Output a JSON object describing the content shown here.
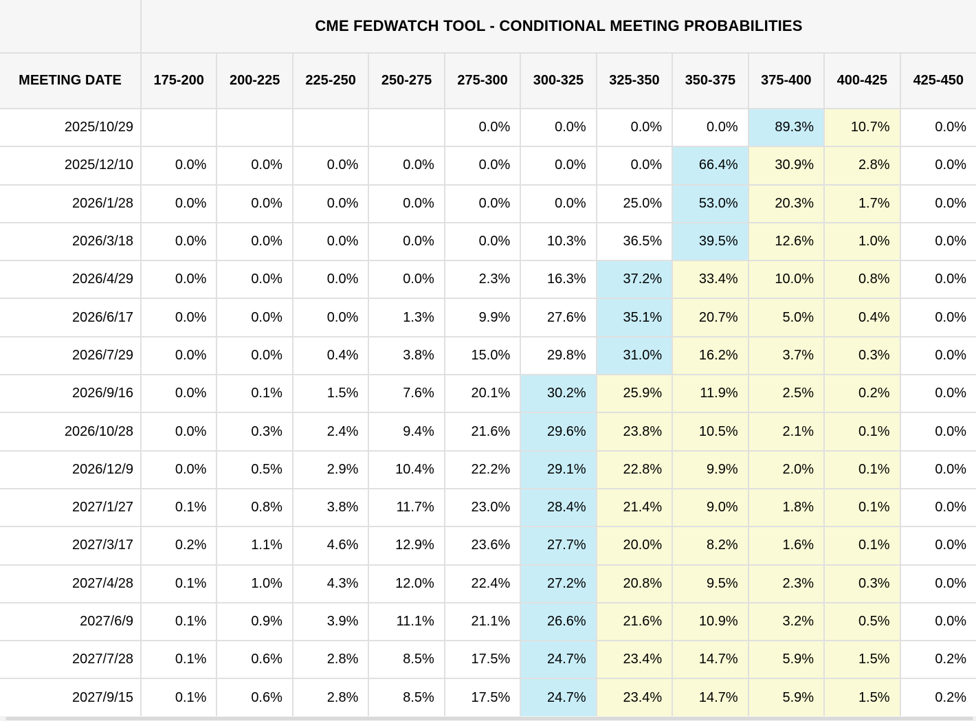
{
  "title": "CME FEDWATCH TOOL - CONDITIONAL MEETING PROBABILITIES",
  "columns": {
    "date_header": "MEETING DATE",
    "rate_ranges": [
      "175-200",
      "200-225",
      "225-250",
      "250-275",
      "275-300",
      "300-325",
      "325-350",
      "350-375",
      "375-400",
      "400-425",
      "425-450"
    ]
  },
  "rows": [
    {
      "date": "2025/10/29",
      "values": [
        "",
        "",
        "",
        "",
        "0.0%",
        "0.0%",
        "0.0%",
        "0.0%",
        "89.3%",
        "10.7%",
        "0.0%"
      ],
      "bg": [
        "w",
        "w",
        "w",
        "w",
        "w",
        "w",
        "w",
        "w",
        "b",
        "y",
        "w"
      ]
    },
    {
      "date": "2025/12/10",
      "values": [
        "0.0%",
        "0.0%",
        "0.0%",
        "0.0%",
        "0.0%",
        "0.0%",
        "0.0%",
        "66.4%",
        "30.9%",
        "2.8%",
        "0.0%"
      ],
      "bg": [
        "w",
        "w",
        "w",
        "w",
        "w",
        "w",
        "w",
        "b",
        "y",
        "y",
        "w"
      ]
    },
    {
      "date": "2026/1/28",
      "values": [
        "0.0%",
        "0.0%",
        "0.0%",
        "0.0%",
        "0.0%",
        "0.0%",
        "25.0%",
        "53.0%",
        "20.3%",
        "1.7%",
        "0.0%"
      ],
      "bg": [
        "w",
        "w",
        "w",
        "w",
        "w",
        "w",
        "w",
        "b",
        "y",
        "y",
        "w"
      ]
    },
    {
      "date": "2026/3/18",
      "values": [
        "0.0%",
        "0.0%",
        "0.0%",
        "0.0%",
        "0.0%",
        "10.3%",
        "36.5%",
        "39.5%",
        "12.6%",
        "1.0%",
        "0.0%"
      ],
      "bg": [
        "w",
        "w",
        "w",
        "w",
        "w",
        "w",
        "w",
        "b",
        "y",
        "y",
        "w"
      ]
    },
    {
      "date": "2026/4/29",
      "values": [
        "0.0%",
        "0.0%",
        "0.0%",
        "0.0%",
        "2.3%",
        "16.3%",
        "37.2%",
        "33.4%",
        "10.0%",
        "0.8%",
        "0.0%"
      ],
      "bg": [
        "w",
        "w",
        "w",
        "w",
        "w",
        "w",
        "b",
        "y",
        "y",
        "y",
        "w"
      ]
    },
    {
      "date": "2026/6/17",
      "values": [
        "0.0%",
        "0.0%",
        "0.0%",
        "1.3%",
        "9.9%",
        "27.6%",
        "35.1%",
        "20.7%",
        "5.0%",
        "0.4%",
        "0.0%"
      ],
      "bg": [
        "w",
        "w",
        "w",
        "w",
        "w",
        "w",
        "b",
        "y",
        "y",
        "y",
        "w"
      ]
    },
    {
      "date": "2026/7/29",
      "values": [
        "0.0%",
        "0.0%",
        "0.4%",
        "3.8%",
        "15.0%",
        "29.8%",
        "31.0%",
        "16.2%",
        "3.7%",
        "0.3%",
        "0.0%"
      ],
      "bg": [
        "w",
        "w",
        "w",
        "w",
        "w",
        "w",
        "b",
        "y",
        "y",
        "y",
        "w"
      ]
    },
    {
      "date": "2026/9/16",
      "values": [
        "0.0%",
        "0.1%",
        "1.5%",
        "7.6%",
        "20.1%",
        "30.2%",
        "25.9%",
        "11.9%",
        "2.5%",
        "0.2%",
        "0.0%"
      ],
      "bg": [
        "w",
        "w",
        "w",
        "w",
        "w",
        "b",
        "y",
        "y",
        "y",
        "y",
        "w"
      ]
    },
    {
      "date": "2026/10/28",
      "values": [
        "0.0%",
        "0.3%",
        "2.4%",
        "9.4%",
        "21.6%",
        "29.6%",
        "23.8%",
        "10.5%",
        "2.1%",
        "0.1%",
        "0.0%"
      ],
      "bg": [
        "w",
        "w",
        "w",
        "w",
        "w",
        "b",
        "y",
        "y",
        "y",
        "y",
        "w"
      ]
    },
    {
      "date": "2026/12/9",
      "values": [
        "0.0%",
        "0.5%",
        "2.9%",
        "10.4%",
        "22.2%",
        "29.1%",
        "22.8%",
        "9.9%",
        "2.0%",
        "0.1%",
        "0.0%"
      ],
      "bg": [
        "w",
        "w",
        "w",
        "w",
        "w",
        "b",
        "y",
        "y",
        "y",
        "y",
        "w"
      ]
    },
    {
      "date": "2027/1/27",
      "values": [
        "0.1%",
        "0.8%",
        "3.8%",
        "11.7%",
        "23.0%",
        "28.4%",
        "21.4%",
        "9.0%",
        "1.8%",
        "0.1%",
        "0.0%"
      ],
      "bg": [
        "w",
        "w",
        "w",
        "w",
        "w",
        "b",
        "y",
        "y",
        "y",
        "y",
        "w"
      ]
    },
    {
      "date": "2027/3/17",
      "values": [
        "0.2%",
        "1.1%",
        "4.6%",
        "12.9%",
        "23.6%",
        "27.7%",
        "20.0%",
        "8.2%",
        "1.6%",
        "0.1%",
        "0.0%"
      ],
      "bg": [
        "w",
        "w",
        "w",
        "w",
        "w",
        "b",
        "y",
        "y",
        "y",
        "y",
        "w"
      ]
    },
    {
      "date": "2027/4/28",
      "values": [
        "0.1%",
        "1.0%",
        "4.3%",
        "12.0%",
        "22.4%",
        "27.2%",
        "20.8%",
        "9.5%",
        "2.3%",
        "0.3%",
        "0.0%"
      ],
      "bg": [
        "w",
        "w",
        "w",
        "w",
        "w",
        "b",
        "y",
        "y",
        "y",
        "y",
        "w"
      ]
    },
    {
      "date": "2027/6/9",
      "values": [
        "0.1%",
        "0.9%",
        "3.9%",
        "11.1%",
        "21.1%",
        "26.6%",
        "21.6%",
        "10.9%",
        "3.2%",
        "0.5%",
        "0.0%"
      ],
      "bg": [
        "w",
        "w",
        "w",
        "w",
        "w",
        "b",
        "y",
        "y",
        "y",
        "y",
        "w"
      ]
    },
    {
      "date": "2027/7/28",
      "values": [
        "0.1%",
        "0.6%",
        "2.8%",
        "8.5%",
        "17.5%",
        "24.7%",
        "23.4%",
        "14.7%",
        "5.9%",
        "1.5%",
        "0.2%"
      ],
      "bg": [
        "w",
        "w",
        "w",
        "w",
        "w",
        "b",
        "y",
        "y",
        "y",
        "y",
        "w"
      ]
    },
    {
      "date": "2027/9/15",
      "values": [
        "0.1%",
        "0.6%",
        "2.8%",
        "8.5%",
        "17.5%",
        "24.7%",
        "23.4%",
        "14.7%",
        "5.9%",
        "1.5%",
        "0.2%"
      ],
      "bg": [
        "w",
        "w",
        "w",
        "w",
        "w",
        "b",
        "y",
        "y",
        "y",
        "y",
        "w"
      ]
    }
  ],
  "colors": {
    "highlight_blue": "#c8edf7",
    "highlight_yellow": "#fafad6",
    "header_bg": "#f6f6f6",
    "border_gray": "#e0e0e0"
  }
}
